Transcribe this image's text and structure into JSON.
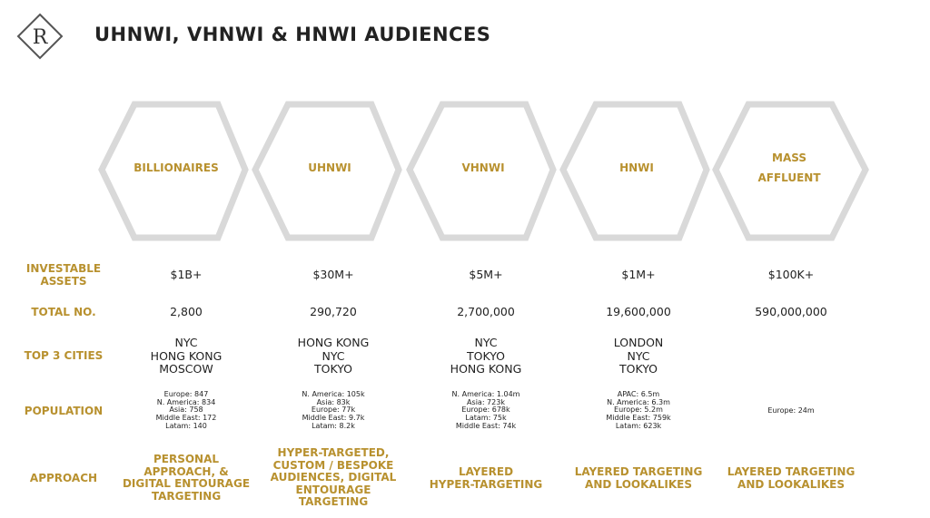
{
  "header": {
    "logo_letter": "R",
    "title": "UHNWI, VHNWI & HNWI AUDIENCES"
  },
  "colors": {
    "gold": "#b8912f",
    "hex_stroke": "#d9d9d9",
    "text": "#222222"
  },
  "segments": [
    {
      "name_lines": [
        "BILLIONAIRES"
      ],
      "assets": "$1B+",
      "total": "2,800",
      "cities": [
        "NYC",
        "HONG KONG",
        "MOSCOW"
      ],
      "population": [
        "Europe: 847",
        "N. America: 834",
        "Asia: 758",
        "Middle East: 172",
        "Latam: 140"
      ],
      "approach": [
        "PERSONAL",
        "APPROACH, &",
        "DIGITAL ENTOURAGE",
        "TARGETING"
      ]
    },
    {
      "name_lines": [
        "UHNWI"
      ],
      "assets": "$30M+",
      "total": "290,720",
      "cities": [
        "HONG KONG",
        "NYC",
        "TOKYO"
      ],
      "population": [
        "N. America: 105k",
        "Asia: 83k",
        "Europe: 77k",
        "Middle East: 9.7k",
        "Latam: 8.2k"
      ],
      "approach": [
        "HYPER-TARGETED,",
        "CUSTOM / BESPOKE",
        "AUDIENCES, DIGITAL",
        "ENTOURAGE",
        "TARGETING"
      ]
    },
    {
      "name_lines": [
        "VHNWI"
      ],
      "assets": "$5M+",
      "total": "2,700,000",
      "cities": [
        "NYC",
        "TOKYO",
        "HONG KONG"
      ],
      "population": [
        "N. America: 1.04m",
        "Asia: 723k",
        "Europe: 678k",
        "Latam: 75k",
        "Middle East: 74k"
      ],
      "approach": [
        "LAYERED",
        "HYPER-TARGETING"
      ]
    },
    {
      "name_lines": [
        "HNWI"
      ],
      "assets": "$1M+",
      "total": "19,600,000",
      "cities": [
        "LONDON",
        "NYC",
        "TOKYO"
      ],
      "population": [
        "APAC: 6.5m",
        "N. America: 6.3m",
        "Europe: 5.2m",
        "Middle East: 759k",
        "Latam: 623k"
      ],
      "approach": [
        "LAYERED TARGETING",
        "AND LOOKALIKES"
      ]
    },
    {
      "name_lines": [
        "MASS",
        "AFFLUENT"
      ],
      "assets": "$100K+",
      "total": "590,000,000",
      "cities": [],
      "population": [
        "Europe: 24m"
      ],
      "approach": [
        "LAYERED TARGETING",
        "AND LOOKALIKES"
      ]
    }
  ],
  "row_labels": {
    "assets": [
      "INVESTABLE",
      "ASSETS"
    ],
    "total": [
      "TOTAL NO."
    ],
    "cities": [
      "TOP 3 CITIES"
    ],
    "population": [
      "POPULATION"
    ],
    "approach": [
      "APPROACH"
    ]
  }
}
